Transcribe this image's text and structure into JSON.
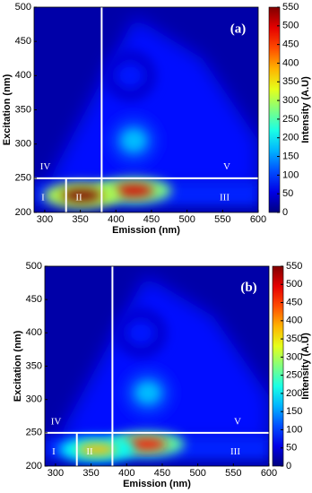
{
  "chart_data": [
    {
      "type": "contour",
      "panel_label": "(a)",
      "x_label": "Emission (nm)",
      "y_label": "Excitation (nm)",
      "colorbar_label": "Intensity (A.U)",
      "xlim": [
        285,
        600
      ],
      "xticks": [
        300,
        350,
        400,
        450,
        500,
        550,
        600
      ],
      "ylim": [
        200,
        500
      ],
      "yticks": [
        200,
        250,
        300,
        350,
        400,
        450,
        500
      ],
      "clim": [
        0,
        550
      ],
      "cticks": [
        0,
        50,
        100,
        150,
        200,
        250,
        300,
        350,
        400,
        450,
        500,
        550
      ],
      "regions": [
        "I",
        "II",
        "III",
        "IV",
        "V"
      ],
      "boundaries": {
        "emission": [
          330,
          380
        ],
        "excitation": 250
      },
      "peaks": [
        {
          "emission": 425,
          "excitation": 305,
          "intensity": 170
        },
        {
          "emission": 420,
          "excitation": 400,
          "intensity": 80
        },
        {
          "emission": 425,
          "excitation": 232,
          "intensity": 500
        },
        {
          "emission": 352,
          "excitation": 225,
          "intensity": 550
        }
      ]
    },
    {
      "type": "contour",
      "panel_label": "(b)",
      "x_label": "Emission (nm)",
      "y_label": "Excitation (nm)",
      "colorbar_label": "Intensity (A.U)",
      "xlim": [
        285,
        600
      ],
      "xticks": [
        300,
        350,
        400,
        450,
        500,
        550,
        600
      ],
      "ylim": [
        200,
        500
      ],
      "yticks": [
        200,
        250,
        300,
        350,
        400,
        450,
        500
      ],
      "clim": [
        0,
        550
      ],
      "cticks": [
        0,
        50,
        100,
        150,
        200,
        250,
        300,
        350,
        400,
        450,
        500,
        550
      ],
      "regions": [
        "I",
        "II",
        "III",
        "IV",
        "V"
      ],
      "boundaries": {
        "emission": [
          330,
          380
        ],
        "excitation": 250
      },
      "peaks": [
        {
          "emission": 430,
          "excitation": 310,
          "intensity": 170
        },
        {
          "emission": 420,
          "excitation": 400,
          "intensity": 80
        },
        {
          "emission": 428,
          "excitation": 233,
          "intensity": 470
        },
        {
          "emission": 358,
          "excitation": 225,
          "intensity": 380
        }
      ]
    }
  ]
}
